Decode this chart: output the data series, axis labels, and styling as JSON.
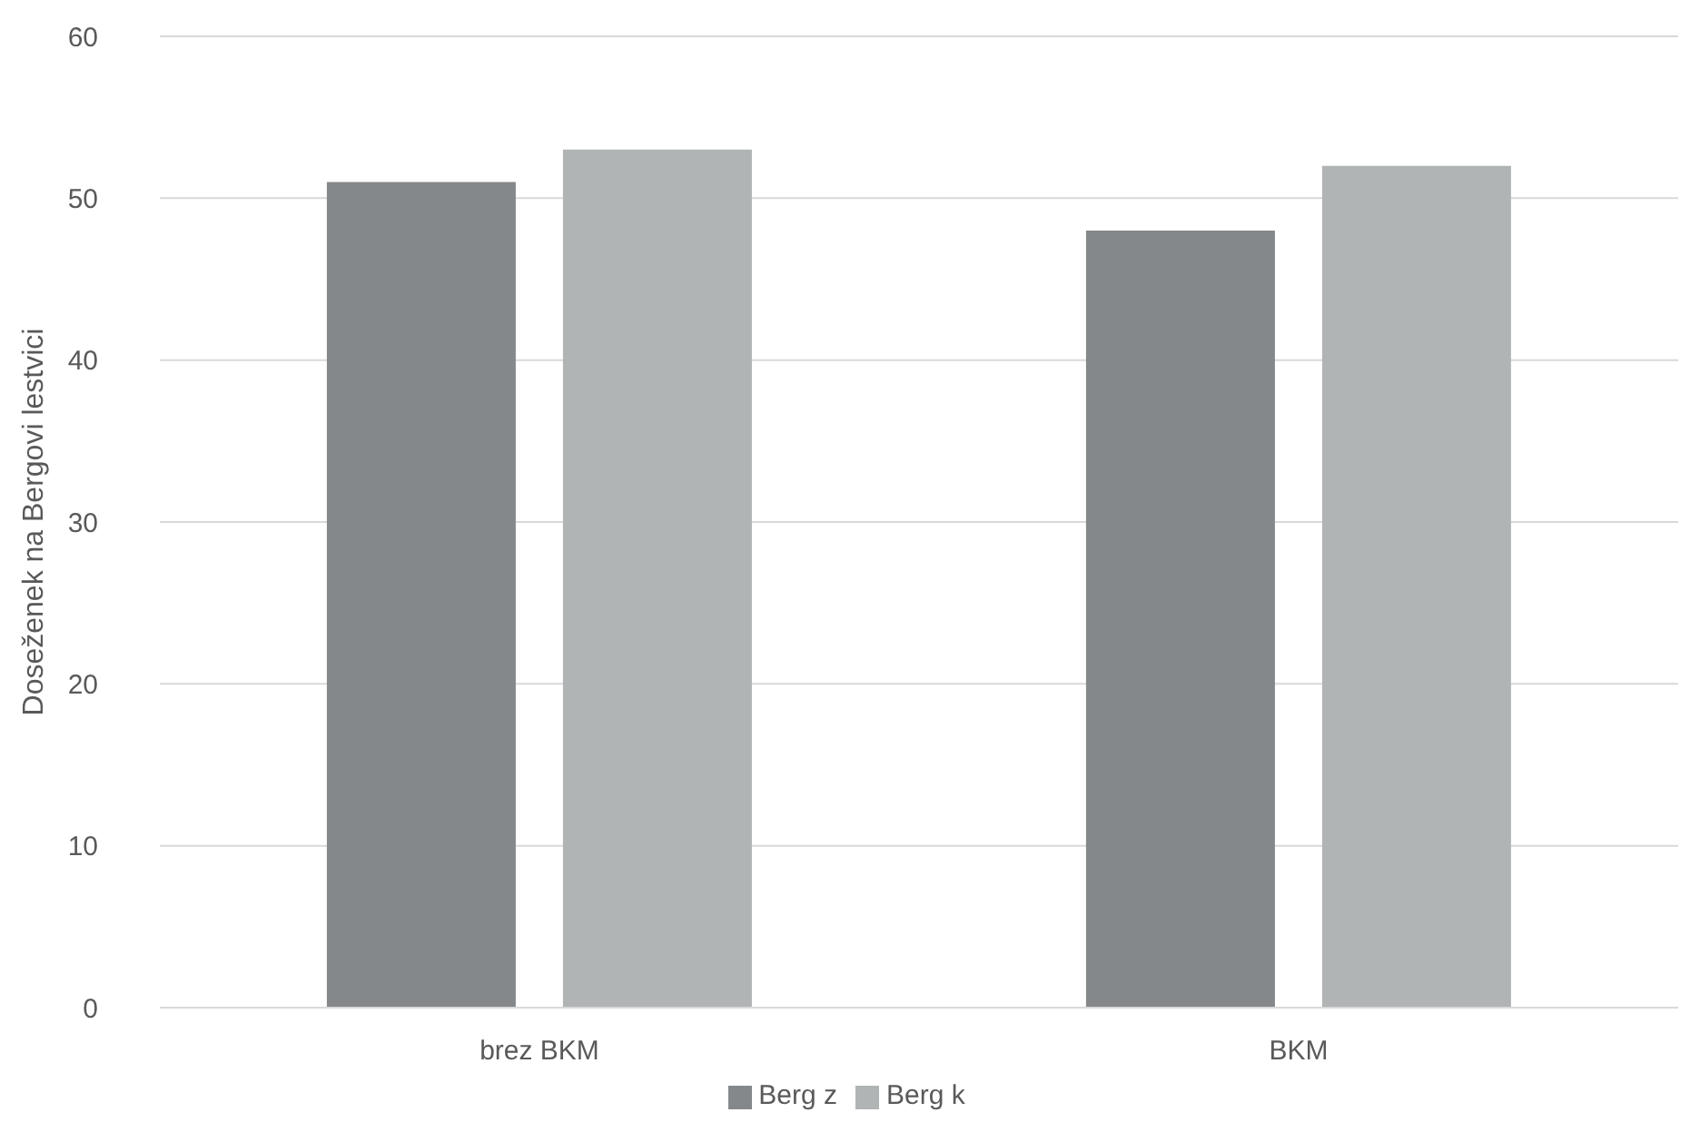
{
  "chart_data": {
    "type": "bar",
    "ylabel": "Doseženek na Bergovi lestvici",
    "categories": [
      "brez BKM",
      "BKM"
    ],
    "series": [
      {
        "name": "Berg z",
        "color": "#85888a",
        "values": [
          51,
          48
        ]
      },
      {
        "name": "Berg k",
        "color": "#b1b4b4",
        "values": [
          53,
          52
        ]
      }
    ],
    "ylim": [
      0,
      60
    ],
    "yticks": [
      0,
      10,
      20,
      30,
      40,
      50,
      60
    ],
    "grid": "y",
    "legend": "bottom"
  }
}
